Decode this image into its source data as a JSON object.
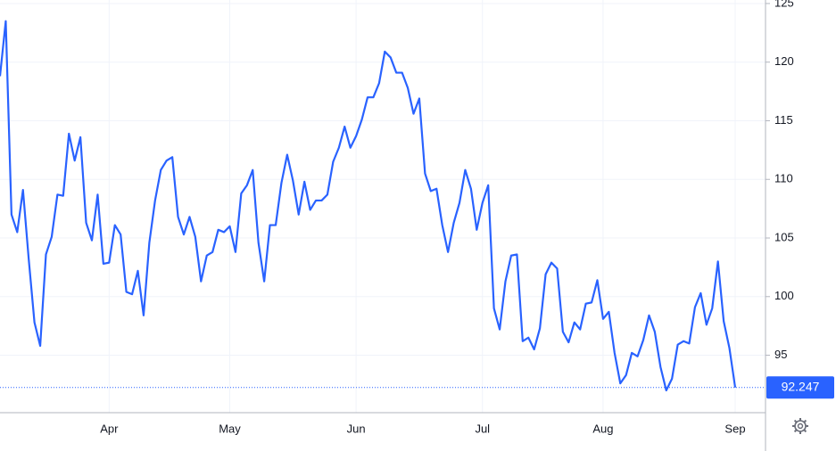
{
  "chart_data": {
    "type": "line",
    "categories": [
      null,
      null,
      null,
      null,
      null,
      null,
      null,
      null,
      null,
      null,
      null,
      null,
      null,
      null,
      null,
      null,
      null,
      null,
      null,
      "Apr",
      null,
      null,
      null,
      null,
      null,
      null,
      null,
      null,
      null,
      null,
      null,
      null,
      null,
      null,
      null,
      null,
      null,
      null,
      null,
      null,
      "May",
      null,
      null,
      null,
      null,
      null,
      null,
      null,
      null,
      null,
      null,
      null,
      null,
      null,
      null,
      null,
      null,
      null,
      null,
      null,
      null,
      null,
      "Jun",
      null,
      null,
      null,
      null,
      null,
      null,
      null,
      null,
      null,
      null,
      null,
      null,
      null,
      null,
      null,
      null,
      null,
      null,
      null,
      null,
      null,
      "Jul",
      null,
      null,
      null,
      null,
      null,
      null,
      null,
      null,
      null,
      null,
      null,
      null,
      null,
      null,
      null,
      null,
      null,
      null,
      null,
      null,
      "Aug",
      null,
      null,
      null,
      null,
      null,
      null,
      null,
      null,
      null,
      null,
      null,
      null,
      null,
      null,
      null,
      null,
      null,
      null,
      null,
      null,
      null,
      null,
      "Sep"
    ],
    "series": [
      {
        "color": "#2962ff",
        "values": [
          118.8,
          123.5,
          107.0,
          105.5,
          109.1,
          103.2,
          97.8,
          95.8,
          103.6,
          105.1,
          108.7,
          108.6,
          113.9,
          111.6,
          113.6,
          106.3,
          104.8,
          108.7,
          102.8,
          102.9,
          106.1,
          105.3,
          100.4,
          100.2,
          102.2,
          98.4,
          104.6,
          108.2,
          110.8,
          111.6,
          111.9,
          106.8,
          105.3,
          106.8,
          105.1,
          101.3,
          103.5,
          103.8,
          105.7,
          105.5,
          106.0,
          103.8,
          108.8,
          109.5,
          110.8,
          104.6,
          101.3,
          106.1,
          106.1,
          109.7,
          112.1,
          109.9,
          107.0,
          109.8,
          107.4,
          108.2,
          108.2,
          108.7,
          111.5,
          112.7,
          114.5,
          112.7,
          113.7,
          115.1,
          117.0,
          117.0,
          118.2,
          120.9,
          120.4,
          119.1,
          119.1,
          117.8,
          115.6,
          116.9,
          110.5,
          109.0,
          109.2,
          106.1,
          103.8,
          106.3,
          108.0,
          110.8,
          109.2,
          105.7,
          108.0,
          109.5,
          99.0,
          97.2,
          101.3,
          103.5,
          103.6,
          96.2,
          96.5,
          95.5,
          97.3,
          101.9,
          102.9,
          102.4,
          97.0,
          96.1,
          97.8,
          97.2,
          99.4,
          99.5,
          101.4,
          98.1,
          98.7,
          95.2,
          92.6,
          93.3,
          95.2,
          94.9,
          96.3,
          98.4,
          97.0,
          94.0,
          92.0,
          93.0,
          95.9,
          96.2,
          96.0,
          99.1,
          100.3,
          97.6,
          99.0,
          103.0,
          97.9,
          95.6,
          92.247
        ]
      }
    ],
    "ylim": [
      90.1,
      125.3
    ],
    "yticks": [
      95,
      100,
      105,
      110,
      115,
      120,
      125
    ],
    "grid": true
  }
}
